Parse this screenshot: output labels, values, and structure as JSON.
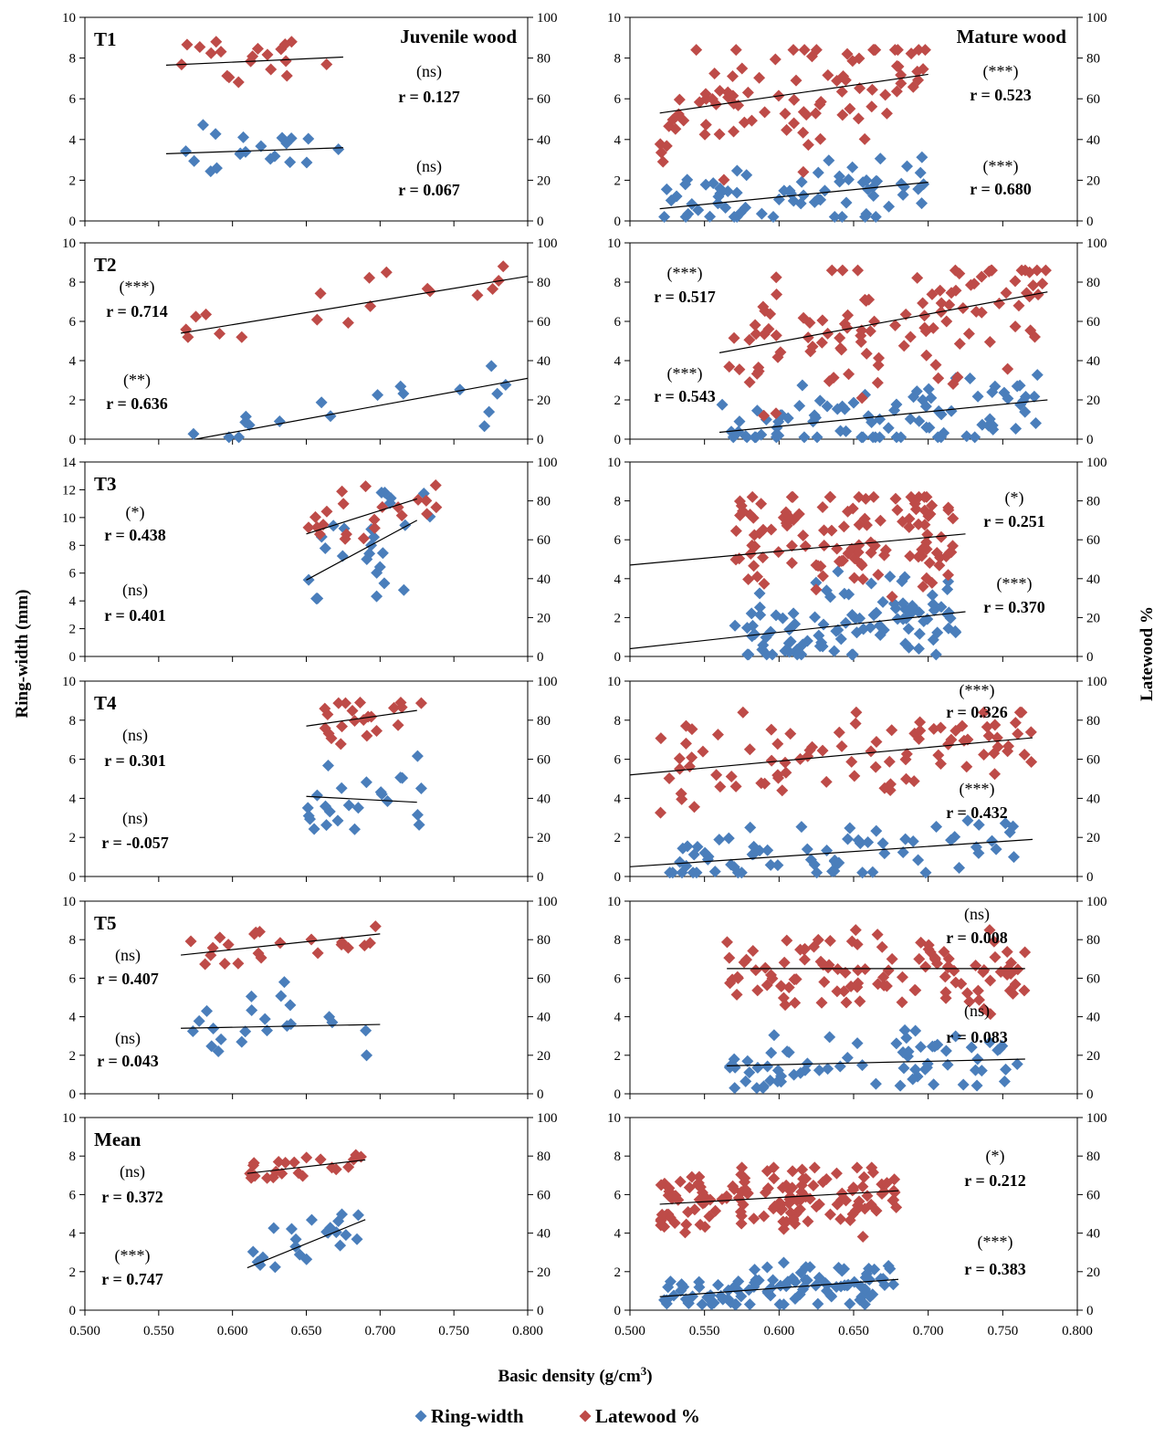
{
  "figure": {
    "y_left_label": "Ring-width (mm)",
    "y_right_label": "Latewood %",
    "x_label": "Basic density (g/cm³)",
    "x_ticks": [
      "0.500",
      "0.550",
      "0.600",
      "0.650",
      "0.700",
      "0.750",
      "0.800"
    ],
    "legend": [
      {
        "name": "Ring-width",
        "color": "#4a7ebb",
        "marker": "diamond"
      },
      {
        "name": "Latewood %",
        "color": "#be4b48",
        "marker": "diamond"
      }
    ]
  },
  "chart_data": [
    {
      "type": "scatter",
      "id": "T1-juvenile",
      "row_label": "T1",
      "column_title": "Juvenile wood",
      "xlim": [
        0.5,
        0.8
      ],
      "ylim_left": [
        0,
        10
      ],
      "ylim_right": [
        0,
        100
      ],
      "ring_width": {
        "x_range": [
          0.555,
          0.675
        ],
        "y_range": [
          2.0,
          5.0
        ],
        "n": 20,
        "fit": [
          [
            0.555,
            3.3
          ],
          [
            0.675,
            3.6
          ]
        ],
        "sig": "(ns)",
        "r": "r = 0.067"
      },
      "latewood": {
        "x_range": [
          0.555,
          0.675
        ],
        "y_range": [
          58,
          88
        ],
        "n": 20,
        "fit": [
          [
            0.555,
            76.5
          ],
          [
            0.675,
            80.5
          ]
        ],
        "sig": "(ns)",
        "r": "r = 0.127"
      }
    },
    {
      "type": "scatter",
      "id": "T1-mature",
      "row_label": "",
      "column_title": "Mature wood",
      "xlim": [
        0.5,
        0.8
      ],
      "ylim_left": [
        0,
        10
      ],
      "ylim_right": [
        0,
        100
      ],
      "ring_width": {
        "x_range": [
          0.52,
          0.7
        ],
        "y_range": [
          0.2,
          3.5
        ],
        "n": 70,
        "fit": [
          [
            0.52,
            0.6
          ],
          [
            0.7,
            1.9
          ]
        ],
        "sig": "(***)",
        "r": "r = 0.680"
      },
      "latewood": {
        "x_range": [
          0.52,
          0.7
        ],
        "y_range": [
          15,
          84
        ],
        "n": 90,
        "fit": [
          [
            0.52,
            53
          ],
          [
            0.7,
            72
          ]
        ],
        "sig": "(***)",
        "r": "r = 0.523"
      }
    },
    {
      "type": "scatter",
      "id": "T2-juvenile",
      "row_label": "T2",
      "column_title": "",
      "xlim": [
        0.5,
        0.8
      ],
      "ylim_left": [
        0,
        10
      ],
      "ylim_right": [
        0,
        100
      ],
      "ring_width": {
        "x_range": [
          0.565,
          0.79
        ],
        "y_range": [
          0.1,
          4.1
        ],
        "n": 18,
        "fit": [
          [
            0.575,
            0.0
          ],
          [
            0.8,
            3.1
          ]
        ],
        "sig": "(**)",
        "r": "r = 0.636"
      },
      "latewood": {
        "x_range": [
          0.565,
          0.79
        ],
        "y_range": [
          52,
          88
        ],
        "n": 18,
        "fit": [
          [
            0.565,
            54
          ],
          [
            0.8,
            83
          ]
        ],
        "sig": "(***)",
        "r": "r = 0.714"
      }
    },
    {
      "type": "scatter",
      "id": "T2-mature",
      "row_label": "",
      "column_title": "",
      "xlim": [
        0.5,
        0.8
      ],
      "ylim_left": [
        0,
        10
      ],
      "ylim_right": [
        0,
        100
      ],
      "ring_width": {
        "x_range": [
          0.56,
          0.78
        ],
        "y_range": [
          0.1,
          3.9
        ],
        "n": 90,
        "fit": [
          [
            0.56,
            0.35
          ],
          [
            0.78,
            2.0
          ]
        ],
        "sig": "(***)",
        "r": "r = 0.543"
      },
      "latewood": {
        "x_range": [
          0.56,
          0.78
        ],
        "y_range": [
          12,
          86
        ],
        "n": 110,
        "fit": [
          [
            0.56,
            44
          ],
          [
            0.78,
            75
          ]
        ],
        "sig": "(***)",
        "r": "r = 0.517"
      }
    },
    {
      "type": "scatter",
      "id": "T3-juvenile",
      "row_label": "T3",
      "column_title": "",
      "xlim": [
        0.5,
        0.8
      ],
      "ylim_left": [
        0,
        14
      ],
      "ylim_right": [
        0,
        100
      ],
      "ring_width": {
        "x_range": [
          0.65,
          0.74
        ],
        "y_range": [
          2.4,
          11.8
        ],
        "n": 26,
        "fit": [
          [
            0.65,
            5.5
          ],
          [
            0.725,
            9.8
          ]
        ],
        "sig": "(ns)",
        "r": "r = 0.401"
      },
      "latewood": {
        "x_range": [
          0.65,
          0.74
        ],
        "y_range": [
          56,
          88
        ],
        "n": 22,
        "fit": [
          [
            0.65,
            63
          ],
          [
            0.725,
            81
          ]
        ],
        "sig": "(*)",
        "r": "r = 0.438"
      }
    },
    {
      "type": "scatter",
      "id": "T3-mature",
      "row_label": "",
      "column_title": "",
      "xlim": [
        0.5,
        0.8
      ],
      "ylim_left": [
        0,
        10
      ],
      "ylim_right": [
        0,
        100
      ],
      "ring_width": {
        "x_range": [
          0.57,
          0.72
        ],
        "y_range": [
          0.1,
          4.9
        ],
        "n": 100,
        "fit": [
          [
            0.5,
            0.4
          ],
          [
            0.725,
            2.3
          ]
        ],
        "sig": "(***)",
        "r": "r = 0.370"
      },
      "latewood": {
        "x_range": [
          0.57,
          0.72
        ],
        "y_range": [
          13,
          82
        ],
        "n": 120,
        "fit": [
          [
            0.5,
            47
          ],
          [
            0.725,
            63
          ]
        ],
        "sig": "(*)",
        "r": "r = 0.251"
      }
    },
    {
      "type": "scatter",
      "id": "T4-juvenile",
      "row_label": "T4",
      "column_title": "",
      "xlim": [
        0.5,
        0.8
      ],
      "ylim_left": [
        0,
        10
      ],
      "ylim_right": [
        0,
        100
      ],
      "ring_width": {
        "x_range": [
          0.65,
          0.73
        ],
        "y_range": [
          1.0,
          6.2
        ],
        "n": 24,
        "fit": [
          [
            0.65,
            4.1
          ],
          [
            0.725,
            3.8
          ]
        ],
        "sig": "(ns)",
        "r": "r = -0.057"
      },
      "latewood": {
        "x_range": [
          0.65,
          0.73
        ],
        "y_range": [
          60,
          89
        ],
        "n": 22,
        "fit": [
          [
            0.65,
            77
          ],
          [
            0.725,
            85
          ]
        ],
        "sig": "(ns)",
        "r": "r = 0.301"
      }
    },
    {
      "type": "scatter",
      "id": "T4-mature",
      "row_label": "",
      "column_title": "",
      "xlim": [
        0.5,
        0.8
      ],
      "ylim_left": [
        0,
        10
      ],
      "ylim_right": [
        0,
        100
      ],
      "ring_width": {
        "x_range": [
          0.52,
          0.77
        ],
        "y_range": [
          0.2,
          3.5
        ],
        "n": 70,
        "fit": [
          [
            0.5,
            0.5
          ],
          [
            0.77,
            1.9
          ]
        ],
        "sig": "(***)",
        "r": "r = 0.432"
      },
      "latewood": {
        "x_range": [
          0.52,
          0.77
        ],
        "y_range": [
          30,
          84
        ],
        "n": 90,
        "fit": [
          [
            0.5,
            52
          ],
          [
            0.77,
            71
          ]
        ],
        "sig": "(***)",
        "r": "r = 0.326"
      }
    },
    {
      "type": "scatter",
      "id": "T5-juvenile",
      "row_label": "T5",
      "column_title": "",
      "xlim": [
        0.5,
        0.8
      ],
      "ylim_left": [
        0,
        10
      ],
      "ylim_right": [
        0,
        100
      ],
      "ring_width": {
        "x_range": [
          0.565,
          0.7
        ],
        "y_range": [
          1.0,
          5.8
        ],
        "n": 22,
        "fit": [
          [
            0.565,
            3.4
          ],
          [
            0.7,
            3.6
          ]
        ],
        "sig": "(ns)",
        "r": "r = 0.043"
      },
      "latewood": {
        "x_range": [
          0.565,
          0.7
        ],
        "y_range": [
          66,
          88
        ],
        "n": 22,
        "fit": [
          [
            0.565,
            72
          ],
          [
            0.7,
            83
          ]
        ],
        "sig": "(ns)",
        "r": "r = 0.407"
      }
    },
    {
      "type": "scatter",
      "id": "T5-mature",
      "row_label": "",
      "column_title": "",
      "xlim": [
        0.5,
        0.8
      ],
      "ylim_left": [
        0,
        10
      ],
      "ylim_right": [
        0,
        100
      ],
      "ring_width": {
        "x_range": [
          0.565,
          0.765
        ],
        "y_range": [
          0.3,
          3.5
        ],
        "n": 70,
        "fit": [
          [
            0.565,
            1.45
          ],
          [
            0.765,
            1.8
          ]
        ],
        "sig": "(ns)",
        "r": "r = 0.083"
      },
      "latewood": {
        "x_range": [
          0.565,
          0.765
        ],
        "y_range": [
          36,
          85
        ],
        "n": 110,
        "fit": [
          [
            0.565,
            65
          ],
          [
            0.765,
            65
          ]
        ],
        "sig": "(ns)",
        "r": "r = 0.008"
      }
    },
    {
      "type": "scatter",
      "id": "Mean-juvenile",
      "row_label": "Mean",
      "column_title": "",
      "xlim": [
        0.5,
        0.8
      ],
      "ylim_left": [
        0,
        10
      ],
      "ylim_right": [
        0,
        100
      ],
      "ring_width": {
        "x_range": [
          0.61,
          0.69
        ],
        "y_range": [
          2.2,
          5.3
        ],
        "n": 22,
        "fit": [
          [
            0.61,
            2.2
          ],
          [
            0.69,
            4.7
          ]
        ],
        "sig": "(***)",
        "r": "r = 0.747"
      },
      "latewood": {
        "x_range": [
          0.61,
          0.69
        ],
        "y_range": [
          66,
          83
        ],
        "n": 22,
        "fit": [
          [
            0.61,
            71
          ],
          [
            0.69,
            78
          ]
        ],
        "sig": "(ns)",
        "r": "r = 0.372"
      }
    },
    {
      "type": "scatter",
      "id": "Mean-mature",
      "row_label": "",
      "column_title": "",
      "xlim": [
        0.5,
        0.8
      ],
      "ylim_left": [
        0,
        10
      ],
      "ylim_right": [
        0,
        100
      ],
      "ring_width": {
        "x_range": [
          0.52,
          0.68
        ],
        "y_range": [
          0.3,
          2.9
        ],
        "n": 100,
        "fit": [
          [
            0.52,
            0.7
          ],
          [
            0.68,
            1.6
          ]
        ],
        "sig": "(***)",
        "r": "r = 0.383"
      },
      "latewood": {
        "x_range": [
          0.52,
          0.68
        ],
        "y_range": [
          35,
          74
        ],
        "n": 140,
        "fit": [
          [
            0.52,
            55
          ],
          [
            0.68,
            62
          ]
        ],
        "sig": "(*)",
        "r": "r = 0.212"
      }
    }
  ]
}
